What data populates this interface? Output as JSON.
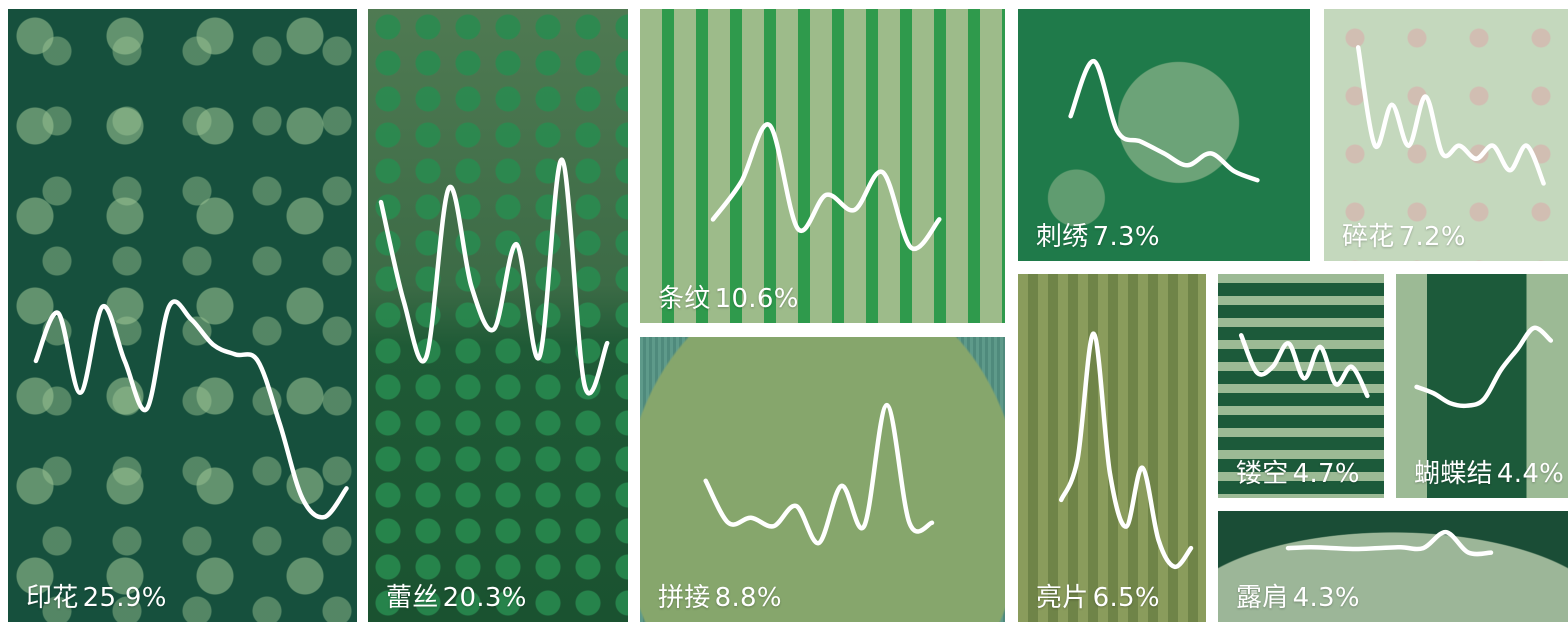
{
  "chart_data": {
    "type": "treemap",
    "line_color": "#ffffff",
    "items": [
      {
        "id": "print",
        "name": "印花",
        "percent": "25.9%",
        "value": 25.9,
        "base": "#16503d",
        "trend": [
          0.55,
          0.7,
          0.45,
          0.72,
          0.55,
          0.4,
          0.72,
          0.68,
          0.6,
          0.57,
          0.55,
          0.35,
          0.12,
          0.06,
          0.15
        ]
      },
      {
        "id": "lace",
        "name": "蕾丝",
        "percent": "20.3%",
        "value": 20.3,
        "base": "#2d6a40",
        "trend": [
          0.75,
          0.4,
          0.2,
          0.8,
          0.45,
          0.3,
          0.6,
          0.2,
          0.9,
          0.1,
          0.25
        ]
      },
      {
        "id": "stripe",
        "name": "条纹",
        "percent": "10.6%",
        "value": 10.6,
        "base": "#5e9a62",
        "trend": [
          0.35,
          0.55,
          0.85,
          0.3,
          0.48,
          0.4,
          0.6,
          0.2,
          0.35
        ]
      },
      {
        "id": "patch",
        "name": "拼接",
        "percent": "8.8%",
        "value": 8.8,
        "base": "#5e8f7c",
        "trend": [
          0.45,
          0.2,
          0.23,
          0.18,
          0.3,
          0.08,
          0.42,
          0.18,
          0.9,
          0.2,
          0.2
        ]
      },
      {
        "id": "embroidery",
        "name": "刺绣",
        "percent": "7.3%",
        "value": 7.3,
        "base": "#1f7a4a",
        "trend": [
          0.55,
          0.92,
          0.45,
          0.38,
          0.3,
          0.22,
          0.3,
          0.18,
          0.12
        ]
      },
      {
        "id": "floral",
        "name": "碎花",
        "percent": "7.2%",
        "value": 7.2,
        "base": "#c4d8bd",
        "trend": [
          0.95,
          0.35,
          0.6,
          0.35,
          0.65,
          0.3,
          0.35,
          0.27,
          0.35,
          0.2,
          0.35,
          0.12
        ]
      },
      {
        "id": "sequin",
        "name": "亮片",
        "percent": "6.5%",
        "value": 6.5,
        "base": "#7d9050",
        "trend": [
          0.3,
          0.45,
          0.92,
          0.4,
          0.2,
          0.42,
          0.15,
          0.05,
          0.12
        ]
      },
      {
        "id": "hollow",
        "name": "镂空",
        "percent": "4.7%",
        "value": 4.7,
        "base": "#1c5a3a",
        "trend": [
          0.82,
          0.5,
          0.55,
          0.75,
          0.45,
          0.72,
          0.4,
          0.55,
          0.3
        ]
      },
      {
        "id": "bow",
        "name": "蝴蝶结",
        "percent": "4.4%",
        "value": 4.4,
        "base": "#1c5a3a",
        "trend": [
          0.35,
          0.3,
          0.22,
          0.2,
          0.25,
          0.48,
          0.65,
          0.82,
          0.72
        ]
      },
      {
        "id": "off_shoulder",
        "name": "露肩",
        "percent": "4.3%",
        "value": 4.3,
        "base": "#1a4d36",
        "trend": [
          0.6,
          0.62,
          0.6,
          0.58,
          0.6,
          0.62,
          0.6,
          0.95,
          0.5,
          0.5
        ]
      }
    ]
  }
}
